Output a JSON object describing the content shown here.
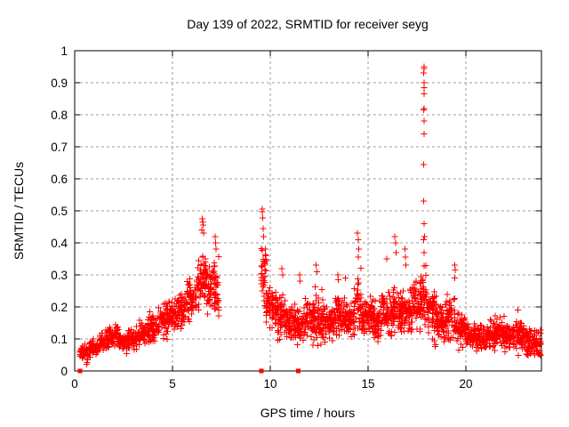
{
  "chart_data": {
    "type": "scatter",
    "title": "Day 139 of 2022, SRMTID for receiver seyg",
    "xlabel": "GPS time / hours",
    "ylabel": "SRMTID / TECUs",
    "xlim": [
      0,
      23.86
    ],
    "ylim": [
      0,
      1
    ],
    "xticks": [
      [
        0,
        "0"
      ],
      [
        5,
        "5"
      ],
      [
        10,
        "10"
      ],
      [
        15,
        "15"
      ],
      [
        20,
        "20"
      ]
    ],
    "yticks": [
      [
        0,
        "0"
      ],
      [
        0.1,
        "0.1"
      ],
      [
        0.2,
        "0.2"
      ],
      [
        0.3,
        "0.3"
      ],
      [
        0.4,
        "0.4"
      ],
      [
        0.5,
        "0.5"
      ],
      [
        0.6,
        "0.6"
      ],
      [
        0.7,
        "0.7"
      ],
      [
        0.8,
        "0.8"
      ],
      [
        0.9,
        "0.9"
      ],
      [
        1,
        "1"
      ]
    ],
    "grid": true,
    "legend": "none",
    "marker": "plus",
    "marker_color": "#ff0000",
    "grid_color": "#9c9c9c",
    "border_color": "#000000",
    "text_color": "#000000",
    "background_color": "#ffffff",
    "data_gap_hours": [
      7.4,
      9.55
    ],
    "zero_markers": {
      "marker": "filled-square",
      "y": 0,
      "hours": [
        0.27,
        9.55,
        11.44
      ]
    },
    "sampling_column_step_hours": 0.042,
    "bands_format": [
      "hour_start",
      "hour_end",
      "y_center",
      "y_spread",
      "point_count"
    ],
    "bands": [
      [
        0.27,
        0.75,
        0.055,
        0.025,
        45
      ],
      [
        0.75,
        1.25,
        0.075,
        0.025,
        50
      ],
      [
        1.25,
        1.75,
        0.095,
        0.03,
        50
      ],
      [
        1.75,
        2.25,
        0.105,
        0.035,
        55
      ],
      [
        2.25,
        2.75,
        0.09,
        0.03,
        50
      ],
      [
        2.75,
        3.25,
        0.1,
        0.035,
        50
      ],
      [
        3.25,
        3.75,
        0.115,
        0.04,
        50
      ],
      [
        3.75,
        4.25,
        0.135,
        0.045,
        55
      ],
      [
        4.25,
        4.75,
        0.155,
        0.05,
        55
      ],
      [
        4.75,
        5.25,
        0.17,
        0.05,
        55
      ],
      [
        5.25,
        5.75,
        0.19,
        0.055,
        55
      ],
      [
        5.75,
        6.25,
        0.22,
        0.06,
        55
      ],
      [
        6.25,
        6.75,
        0.28,
        0.08,
        60
      ],
      [
        6.75,
        7.15,
        0.26,
        0.07,
        45
      ],
      [
        7.15,
        7.4,
        0.24,
        0.09,
        30
      ],
      [
        9.55,
        9.8,
        0.3,
        0.09,
        35
      ],
      [
        9.8,
        10.3,
        0.2,
        0.06,
        60
      ],
      [
        10.3,
        10.8,
        0.17,
        0.06,
        60
      ],
      [
        10.8,
        11.3,
        0.15,
        0.05,
        60
      ],
      [
        11.3,
        11.8,
        0.14,
        0.055,
        60
      ],
      [
        11.8,
        12.3,
        0.16,
        0.06,
        60
      ],
      [
        12.3,
        12.8,
        0.165,
        0.07,
        60
      ],
      [
        12.8,
        13.3,
        0.15,
        0.05,
        60
      ],
      [
        13.3,
        13.8,
        0.17,
        0.06,
        60
      ],
      [
        13.8,
        14.3,
        0.16,
        0.05,
        60
      ],
      [
        14.3,
        14.7,
        0.21,
        0.09,
        50
      ],
      [
        14.7,
        15.2,
        0.17,
        0.05,
        60
      ],
      [
        15.2,
        15.7,
        0.16,
        0.06,
        60
      ],
      [
        15.7,
        16.2,
        0.18,
        0.065,
        60
      ],
      [
        16.2,
        16.7,
        0.185,
        0.075,
        65
      ],
      [
        16.7,
        17.2,
        0.18,
        0.07,
        65
      ],
      [
        17.2,
        17.7,
        0.2,
        0.075,
        65
      ],
      [
        17.7,
        18.0,
        0.24,
        0.1,
        40
      ],
      [
        18.0,
        18.5,
        0.18,
        0.08,
        65
      ],
      [
        18.5,
        19.0,
        0.15,
        0.06,
        60
      ],
      [
        19.0,
        19.5,
        0.16,
        0.07,
        60
      ],
      [
        19.5,
        20.0,
        0.13,
        0.05,
        60
      ],
      [
        20.0,
        20.5,
        0.115,
        0.04,
        60
      ],
      [
        20.5,
        21.0,
        0.1,
        0.04,
        60
      ],
      [
        21.0,
        21.5,
        0.11,
        0.04,
        60
      ],
      [
        21.5,
        22.0,
        0.12,
        0.04,
        60
      ],
      [
        22.0,
        22.5,
        0.105,
        0.04,
        60
      ],
      [
        22.5,
        23.0,
        0.11,
        0.05,
        60
      ],
      [
        23.0,
        23.4,
        0.09,
        0.04,
        50
      ],
      [
        23.4,
        23.86,
        0.085,
        0.04,
        50
      ]
    ],
    "notable_points": [
      [
        6.5,
        0.44
      ],
      [
        6.53,
        0.475
      ],
      [
        6.55,
        0.465
      ],
      [
        6.57,
        0.455
      ],
      [
        6.6,
        0.43
      ],
      [
        7.17,
        0.42
      ],
      [
        7.2,
        0.4
      ],
      [
        7.22,
        0.38
      ],
      [
        9.58,
        0.505
      ],
      [
        9.6,
        0.497
      ],
      [
        9.62,
        0.478
      ],
      [
        9.64,
        0.444
      ],
      [
        9.66,
        0.42
      ],
      [
        9.74,
        0.38
      ],
      [
        9.77,
        0.36
      ],
      [
        9.8,
        0.345
      ],
      [
        10.6,
        0.32
      ],
      [
        10.63,
        0.3
      ],
      [
        11.5,
        0.3
      ],
      [
        11.52,
        0.28
      ],
      [
        12.35,
        0.33
      ],
      [
        12.38,
        0.31
      ],
      [
        13.45,
        0.3
      ],
      [
        13.48,
        0.285
      ],
      [
        13.85,
        0.29
      ],
      [
        14.46,
        0.43
      ],
      [
        14.49,
        0.41
      ],
      [
        14.52,
        0.38
      ],
      [
        14.5,
        0.355
      ],
      [
        15.95,
        0.35
      ],
      [
        16.35,
        0.42
      ],
      [
        16.4,
        0.4
      ],
      [
        16.43,
        0.37
      ],
      [
        16.88,
        0.38
      ],
      [
        16.91,
        0.355
      ],
      [
        16.94,
        0.33
      ],
      [
        17.85,
        0.95
      ],
      [
        17.86,
        0.945
      ],
      [
        17.84,
        0.93
      ],
      [
        17.87,
        0.9
      ],
      [
        17.86,
        0.885
      ],
      [
        17.85,
        0.865
      ],
      [
        17.84,
        0.815
      ],
      [
        17.87,
        0.82
      ],
      [
        17.86,
        0.78
      ],
      [
        17.85,
        0.74
      ],
      [
        17.84,
        0.645
      ],
      [
        17.83,
        0.53
      ],
      [
        17.86,
        0.46
      ],
      [
        17.88,
        0.42
      ],
      [
        17.83,
        0.41
      ],
      [
        17.87,
        0.37
      ],
      [
        19.42,
        0.33
      ],
      [
        19.45,
        0.315
      ],
      [
        19.44,
        0.29
      ],
      [
        22.65,
        0.19
      ]
    ]
  }
}
